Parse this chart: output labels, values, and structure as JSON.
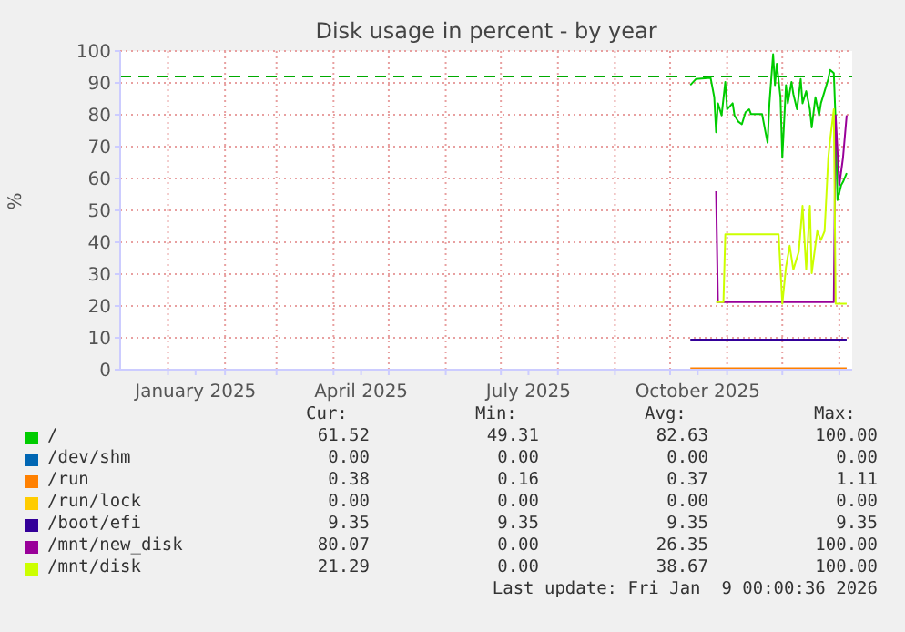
{
  "chart_data": {
    "type": "line",
    "title": "Disk usage in percent - by year",
    "ylabel": "%",
    "xlim": [
      "2024-12-06",
      "2026-01-08"
    ],
    "xticks": [
      {
        "value": "2025-01-01",
        "label": null
      },
      {
        "value": "2025-01-16",
        "label": "January 2025"
      },
      {
        "value": "2025-02-01",
        "label": null
      },
      {
        "value": "2025-03-01",
        "label": null
      },
      {
        "value": "2025-04-01",
        "label": null
      },
      {
        "value": "2025-04-16",
        "label": "April 2025"
      },
      {
        "value": "2025-05-01",
        "label": null
      },
      {
        "value": "2025-06-01",
        "label": null
      },
      {
        "value": "2025-07-01",
        "label": null
      },
      {
        "value": "2025-07-16",
        "label": "July 2025"
      },
      {
        "value": "2025-08-01",
        "label": null
      },
      {
        "value": "2025-09-01",
        "label": null
      },
      {
        "value": "2025-10-01",
        "label": null
      },
      {
        "value": "2025-10-16",
        "label": "October 2025"
      },
      {
        "value": "2025-11-01",
        "label": null
      },
      {
        "value": "2025-12-01",
        "label": null
      },
      {
        "value": "2026-01-01",
        "label": null
      }
    ],
    "ylim": [
      0,
      100
    ],
    "yticks": [
      0,
      10,
      20,
      30,
      40,
      50,
      60,
      70,
      80,
      90,
      100
    ],
    "grid": true,
    "legend": "bottom",
    "ref_lines": [
      {
        "axis": "y",
        "value": 92,
        "color": "#00aa00",
        "line_style": "dashed"
      }
    ],
    "series": [
      {
        "name": "/",
        "color": "#00cc00",
        "x": [
          "2025-10-12",
          "2025-10-15",
          "2025-10-23",
          "2025-10-25",
          "2025-10-26",
          "2025-10-27",
          "2025-10-29",
          "2025-10-31",
          "2025-11-01",
          "2025-11-04",
          "2025-11-05",
          "2025-11-07",
          "2025-11-09",
          "2025-11-11",
          "2025-11-13",
          "2025-11-14",
          "2025-11-20",
          "2025-11-22",
          "2025-11-23",
          "2025-11-24",
          "2025-11-26",
          "2025-11-27",
          "2025-11-28",
          "2025-11-30",
          "2025-12-01",
          "2025-12-03",
          "2025-12-04",
          "2025-12-06",
          "2025-12-07",
          "2025-12-09",
          "2025-12-11",
          "2025-12-12",
          "2025-12-14",
          "2025-12-16",
          "2025-12-17",
          "2025-12-19",
          "2025-12-21",
          "2025-12-22",
          "2025-12-24",
          "2025-12-26",
          "2025-12-27",
          "2025-12-29",
          "2025-12-30",
          "2025-12-31",
          "2026-01-02",
          "2026-01-03",
          "2026-01-05"
        ],
        "values": [
          89.3,
          91.2,
          91.6,
          85.5,
          74.5,
          83.6,
          79.8,
          90.3,
          81.7,
          83.6,
          79.8,
          77.9,
          77,
          80.8,
          81.7,
          80.2,
          80.2,
          74.1,
          71.2,
          83.6,
          99,
          89.3,
          96,
          85.5,
          66.5,
          89.3,
          83.6,
          90.3,
          86.5,
          81.7,
          91.2,
          83.6,
          87.4,
          81.7,
          76,
          85.5,
          79.8,
          83.6,
          87.4,
          91.2,
          94.1,
          93.1,
          77.9,
          53.2,
          57.9,
          58.9,
          61.7
        ]
      },
      {
        "name": "/dev/shm",
        "color": "#0066b3"
      },
      {
        "name": "/run",
        "color": "#ff8000",
        "x": [
          "2025-10-12",
          "2026-01-05"
        ],
        "values": [
          0.4,
          0.4
        ]
      },
      {
        "name": "/run/lock",
        "color": "#ffcc00"
      },
      {
        "name": "/boot/efi",
        "color": "#330099",
        "x": [
          "2025-10-12",
          "2026-01-05"
        ],
        "values": [
          9.4,
          9.4
        ]
      },
      {
        "name": "/mnt/new_disk",
        "color": "#990099",
        "x": [
          "2025-10-26",
          "2025-10-27",
          "2025-12-29",
          "2025-12-30",
          "2026-01-01",
          "2026-01-03",
          "2026-01-05"
        ],
        "values": [
          56,
          21.2,
          21.2,
          79.8,
          57.9,
          66.5,
          79.8
        ]
      },
      {
        "name": "/mnt/disk",
        "color": "#ccff00",
        "x": [
          "2025-10-26",
          "2025-10-30",
          "2025-10-31",
          "2025-11-29",
          "2025-12-01",
          "2025-12-03",
          "2025-12-05",
          "2025-12-07",
          "2025-12-10",
          "2025-12-12",
          "2025-12-14",
          "2025-12-16",
          "2025-12-17",
          "2025-12-20",
          "2025-12-22",
          "2025-12-24",
          "2025-12-26",
          "2025-12-27",
          "2025-12-29",
          "2025-12-30",
          "2026-01-05"
        ],
        "values": [
          21.2,
          21.2,
          42.5,
          42.5,
          20.7,
          32.2,
          38.9,
          31.4,
          37.1,
          51.4,
          31.4,
          51.4,
          30.3,
          43.5,
          40.7,
          43.5,
          66.5,
          72.2,
          81.7,
          20.7,
          20.7
        ]
      }
    ],
    "annotations": [
      "Cur:",
      "Min:",
      "Avg:",
      "Max:",
      "61.52",
      "49.31",
      "82.63",
      "100.00",
      "0.00",
      "0.00",
      "0.00",
      "0.00",
      "0.38",
      "0.16",
      "0.37",
      "1.11",
      "0.00",
      "0.00",
      "0.00",
      "0.00",
      "9.35",
      "9.35",
      "9.35",
      "9.35",
      "80.07",
      "0.00",
      "26.35",
      "100.00",
      "21.29",
      "0.00",
      "38.67",
      "100.00",
      "Last update: Fri Jan  9 00:00:36 2026"
    ]
  }
}
